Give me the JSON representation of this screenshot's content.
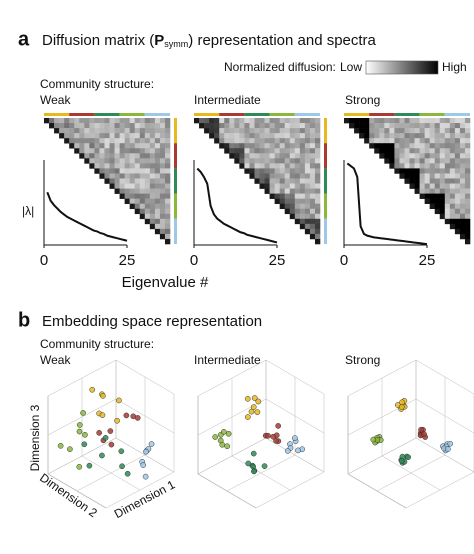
{
  "panel_a": {
    "label": "a",
    "title_parts": [
      "Diffusion matrix (",
      "P",
      "symm",
      ") representation and spectra"
    ],
    "legend": {
      "title": "Normalized diffusion:",
      "low": "Low",
      "high": "High"
    },
    "community_label": "Community structure:",
    "conditions": [
      "Weak",
      "Intermediate",
      "Strong"
    ],
    "xlabel": "Eigenvalue #"
  },
  "community_colors": [
    "#e8b820",
    "#a83a32",
    "#2e8b57",
    "#8ab83a",
    "#9ec8e8"
  ],
  "chart_data": [
    {
      "type": "line",
      "ylabel": "|λ|",
      "x": [
        1,
        2,
        3,
        4,
        5,
        6,
        7,
        8,
        9,
        10,
        11,
        12,
        13,
        14,
        15,
        16,
        17,
        18,
        19,
        20,
        21,
        22,
        23,
        24,
        25
      ],
      "values": [
        0.62,
        0.52,
        0.47,
        0.43,
        0.39,
        0.36,
        0.33,
        0.31,
        0.29,
        0.27,
        0.25,
        0.23,
        0.21,
        0.19,
        0.17,
        0.16,
        0.14,
        0.13,
        0.11,
        0.1,
        0.09,
        0.08,
        0.07,
        0.06,
        0.05
      ],
      "xlim": [
        0,
        25
      ],
      "xticks": [
        0,
        25
      ],
      "ylim": [
        0,
        1
      ],
      "color": "#111111"
    },
    {
      "type": "line",
      "x": [
        1,
        2,
        3,
        4,
        5,
        6,
        7,
        8,
        9,
        10,
        11,
        12,
        13,
        14,
        15,
        16,
        17,
        18,
        19,
        20,
        21,
        22,
        23,
        24,
        25
      ],
      "values": [
        0.9,
        0.86,
        0.8,
        0.72,
        0.46,
        0.36,
        0.31,
        0.28,
        0.25,
        0.23,
        0.21,
        0.19,
        0.17,
        0.15,
        0.14,
        0.12,
        0.11,
        0.1,
        0.09,
        0.08,
        0.07,
        0.06,
        0.05,
        0.04,
        0.03
      ],
      "xlim": [
        0,
        25
      ],
      "xticks": [
        0,
        25
      ],
      "ylim": [
        0,
        1
      ],
      "color": "#111111"
    },
    {
      "type": "line",
      "x": [
        1,
        2,
        3,
        4,
        5,
        6,
        7,
        8,
        9,
        10,
        11,
        12,
        13,
        14,
        15,
        16,
        17,
        18,
        19,
        20,
        21,
        22,
        23,
        24,
        25
      ],
      "values": [
        0.96,
        0.93,
        0.9,
        0.8,
        0.22,
        0.13,
        0.11,
        0.1,
        0.09,
        0.085,
        0.08,
        0.075,
        0.07,
        0.065,
        0.06,
        0.055,
        0.05,
        0.045,
        0.04,
        0.035,
        0.03,
        0.025,
        0.02,
        0.015,
        0.01
      ],
      "xlim": [
        0,
        25
      ],
      "xticks": [
        0,
        25
      ],
      "ylim": [
        0,
        1
      ],
      "color": "#111111"
    }
  ],
  "panel_b": {
    "label": "b",
    "title": "Embedding space representation",
    "community_label": "Community structure:",
    "conditions": [
      "Weak",
      "Intermediate",
      "Strong"
    ],
    "axis_labels": [
      "Dimension 1",
      "Dimension 2",
      "Dimension 3"
    ]
  }
}
